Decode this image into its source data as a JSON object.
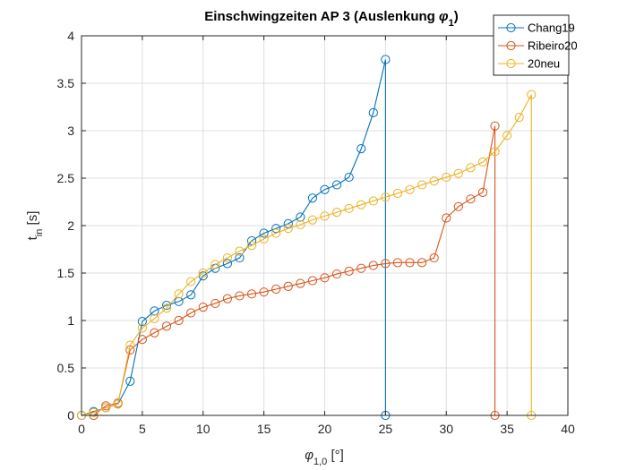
{
  "chart_data": {
    "type": "line",
    "title": "Einschwingzeiten AP 3 (Auslenkung ",
    "title_symbol": "φ",
    "title_subscript": "1",
    "title_end": ")",
    "xlabel": "φ",
    "xlabel_subscript": "1,0",
    "xlabel_unit": " [°]",
    "ylabel": "t",
    "ylabel_subscript": "in",
    "ylabel_unit": " [s]",
    "xlim": [
      0,
      40
    ],
    "ylim": [
      0,
      4
    ],
    "xticks": [
      0,
      5,
      10,
      15,
      20,
      25,
      30,
      35,
      40
    ],
    "yticks": [
      0,
      0.5,
      1,
      1.5,
      2,
      2.5,
      3,
      3.5,
      4
    ],
    "grid": true,
    "legend_position": "top-right",
    "series": [
      {
        "name": "Chang19",
        "color": "#0072BD",
        "x": [
          0,
          1,
          2,
          3,
          4,
          5,
          6,
          7,
          8,
          9,
          10,
          11,
          12,
          13,
          14,
          15,
          16,
          17,
          18,
          19,
          20,
          21,
          22,
          23,
          24,
          25,
          25
        ],
        "y": [
          0,
          0.04,
          0.08,
          0.12,
          0.36,
          0.99,
          1.1,
          1.16,
          1.2,
          1.27,
          1.47,
          1.55,
          1.6,
          1.66,
          1.84,
          1.92,
          1.97,
          2.02,
          2.09,
          2.29,
          2.38,
          2.43,
          2.51,
          2.81,
          3.19,
          3.75,
          0
        ]
      },
      {
        "name": "Ribeiro20",
        "color": "#D95319",
        "x": [
          1,
          2,
          3,
          4,
          5,
          6,
          7,
          8,
          9,
          10,
          11,
          12,
          13,
          14,
          15,
          16,
          17,
          18,
          19,
          20,
          21,
          22,
          23,
          24,
          25,
          26,
          27,
          28,
          29,
          30,
          31,
          32,
          33,
          34,
          34
        ],
        "y": [
          0,
          0.1,
          0.13,
          0.69,
          0.8,
          0.87,
          0.94,
          1.0,
          1.08,
          1.14,
          1.18,
          1.23,
          1.26,
          1.28,
          1.3,
          1.33,
          1.36,
          1.39,
          1.42,
          1.45,
          1.49,
          1.52,
          1.55,
          1.58,
          1.6,
          1.61,
          1.61,
          1.61,
          1.66,
          2.08,
          2.2,
          2.28,
          2.35,
          3.05,
          0
        ]
      },
      {
        "name": "20neu",
        "color": "#EDB120",
        "x": [
          0,
          1,
          2,
          3,
          4,
          5,
          6,
          7,
          8,
          9,
          10,
          11,
          12,
          13,
          14,
          15,
          16,
          17,
          18,
          19,
          20,
          21,
          22,
          23,
          24,
          25,
          26,
          27,
          28,
          29,
          30,
          31,
          32,
          33,
          34,
          35,
          36,
          37,
          37
        ],
        "y": [
          0,
          0.03,
          0.08,
          0.12,
          0.74,
          0.92,
          1.02,
          1.13,
          1.28,
          1.41,
          1.5,
          1.59,
          1.66,
          1.73,
          1.79,
          1.86,
          1.92,
          1.97,
          2.01,
          2.06,
          2.1,
          2.14,
          2.18,
          2.22,
          2.26,
          2.3,
          2.34,
          2.38,
          2.43,
          2.47,
          2.51,
          2.55,
          2.61,
          2.67,
          2.78,
          2.95,
          3.14,
          3.38,
          0
        ]
      }
    ]
  }
}
